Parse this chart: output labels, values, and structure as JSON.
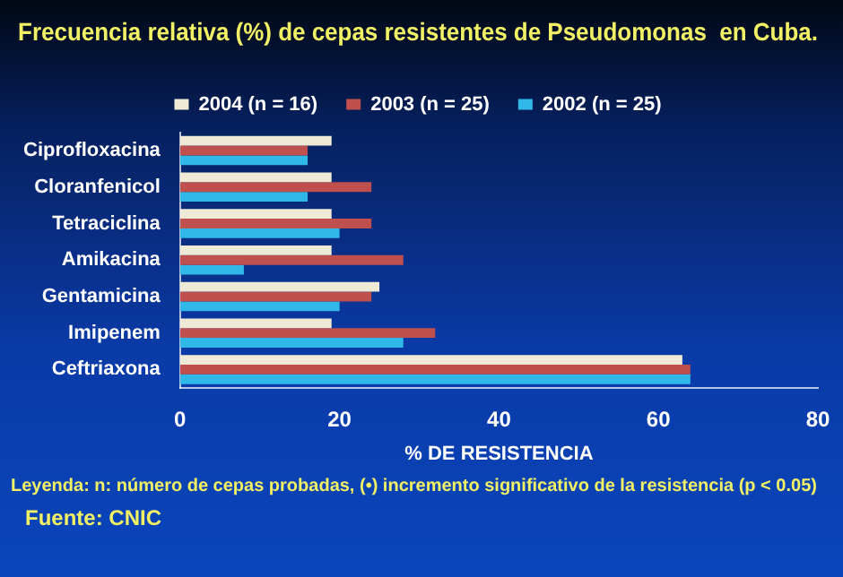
{
  "chart_data": {
    "type": "bar",
    "orientation": "horizontal",
    "title": "Frecuencia relativa (%) de cepas resistentes de Pseudomonas  en Cuba.",
    "xlabel": "% DE RESISTENCIA",
    "categories": [
      "Ciprofloxacina",
      "Cloranfenicol",
      "Tetraciclina",
      "Amikacina",
      "Gentamicina",
      "Imipenem",
      "Ceftriaxona"
    ],
    "series": [
      {
        "name": "2004 (n = 16)",
        "color": "#eeead6",
        "values": [
          19,
          19,
          19,
          19,
          25,
          19,
          63
        ]
      },
      {
        "name": "2003 (n = 25)",
        "color": "#c0504d",
        "values": [
          16,
          24,
          24,
          28,
          24,
          32,
          64
        ]
      },
      {
        "name": "2002 (n = 25)",
        "color": "#2fb8e8",
        "values": [
          16,
          16,
          20,
          8,
          20,
          28,
          64
        ]
      }
    ],
    "xlim": [
      0,
      80
    ],
    "xticks": [
      0,
      20,
      40,
      60,
      80
    ],
    "grid": false,
    "legend": "top",
    "annotations": [
      "Leyenda: n: número de cepas probadas, (•) incremento significativo de la resistencia (p < 0.05)",
      "Fuente: CNIC"
    ]
  }
}
